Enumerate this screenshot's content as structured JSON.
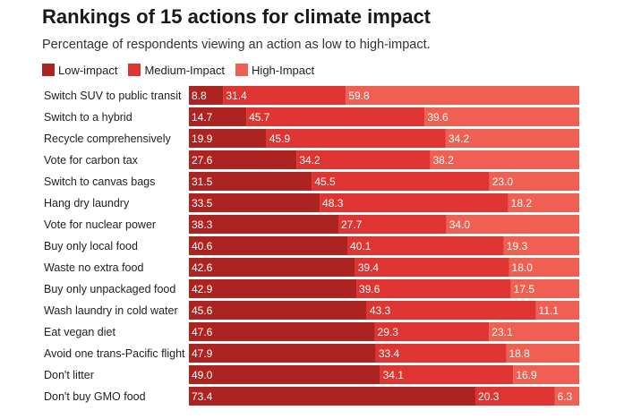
{
  "title": "Rankings of 15 actions for climate impact",
  "subtitle": "Percentage of respondents viewing an action as low to high-impact.",
  "colors": {
    "low": "#ad2322",
    "medium": "#de3532",
    "high": "#ef6052"
  },
  "legend": [
    {
      "label": "Low-impact",
      "color": "#ad2322"
    },
    {
      "label": "Medium-Impact",
      "color": "#de3532"
    },
    {
      "label": "High-Impact",
      "color": "#ef6052"
    }
  ],
  "chart_data": {
    "type": "bar",
    "stacked": true,
    "orientation": "horizontal",
    "title": "Rankings of 15 actions for climate impact",
    "subtitle": "Percentage of respondents viewing an action as low to high-impact.",
    "xlim": [
      0,
      100
    ],
    "grid": false,
    "legend_position": "top-left",
    "categories": [
      "Switch SUV to public transit",
      "Switch to a hybrid",
      "Recycle comprehensively",
      "Vote for carbon tax",
      "Switch to canvas bags",
      "Hang dry laundry",
      "Vote for nuclear power",
      "Buy only local food",
      "Waste no extra food",
      "Buy only unpackaged food",
      "Wash laundry in cold water",
      "Eat vegan diet",
      "Avoid one trans-Pacific flight",
      "Don't litter",
      "Don't buy GMO food"
    ],
    "series": [
      {
        "name": "Low-impact",
        "values": [
          8.8,
          14.7,
          19.9,
          27.6,
          31.5,
          33.5,
          38.3,
          40.6,
          42.6,
          42.9,
          45.6,
          47.6,
          47.9,
          49.0,
          73.4
        ]
      },
      {
        "name": "Medium-Impact",
        "values": [
          31.4,
          45.7,
          45.9,
          34.2,
          45.5,
          48.3,
          27.7,
          40.1,
          39.4,
          39.6,
          43.3,
          29.3,
          33.4,
          34.1,
          20.3
        ]
      },
      {
        "name": "High-Impact",
        "values": [
          59.8,
          39.6,
          34.2,
          38.2,
          23.0,
          18.2,
          34.0,
          19.3,
          18.0,
          17.5,
          11.1,
          23.1,
          18.8,
          16.9,
          6.3
        ]
      }
    ],
    "value_labels": [
      [
        "8.8",
        "31.4",
        "59.8"
      ],
      [
        "14.7",
        "45.7",
        "39.6"
      ],
      [
        "19.9",
        "45.9",
        "34.2"
      ],
      [
        "27.6",
        "34.2",
        "38.2"
      ],
      [
        "31.5",
        "45.5",
        "23.0"
      ],
      [
        "33.5",
        "48.3",
        "18.2"
      ],
      [
        "38.3",
        "27.7",
        "34.0"
      ],
      [
        "40.6",
        "40.1",
        "19.3"
      ],
      [
        "42.6",
        "39.4",
        "18.0"
      ],
      [
        "42.9",
        "39.6",
        "17.5"
      ],
      [
        "45.6",
        "43.3",
        "11.1"
      ],
      [
        "47.6",
        "29.3",
        "23.1"
      ],
      [
        "47.9",
        "33.4",
        "18.8"
      ],
      [
        "49.0",
        "34.1",
        "16.9"
      ],
      [
        "73.4",
        "20.3",
        "6.3"
      ]
    ]
  }
}
